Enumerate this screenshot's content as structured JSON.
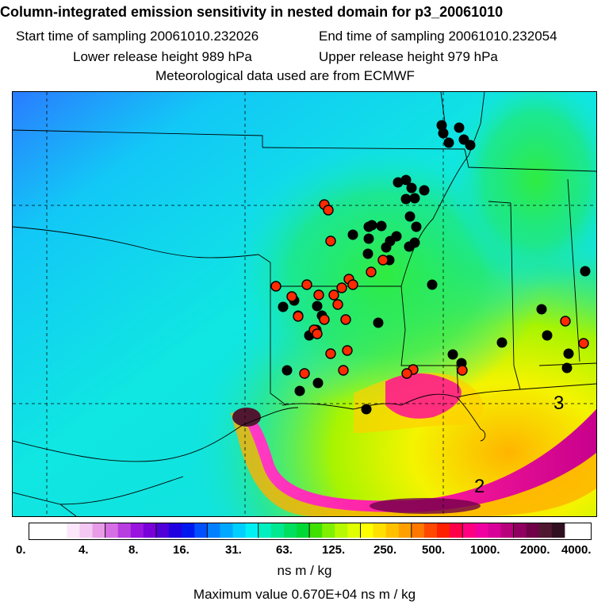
{
  "header": {
    "title": "Column-integrated emission sensitivity in nested domain for p3_20061010",
    "start": "Start time of sampling 20061010.232026",
    "end": "End time of sampling 20061010.232054",
    "lower": "Lower release height  989 hPa",
    "upper": "Upper release height  979 hPa",
    "met": "Meteorological data used are from ECMWF"
  },
  "map": {
    "labels": [
      "2",
      "3"
    ]
  },
  "colorbar": {
    "ticks": [
      "0.",
      "4.",
      "8.",
      "16.",
      "31.",
      "63.",
      "125.",
      "250.",
      "500.",
      "1000.",
      "2000.",
      "4000."
    ],
    "colors": [
      "#ffffff",
      "#fbe6fb",
      "#f3c8f3",
      "#e89ce8",
      "#d66fe6",
      "#b83ee0",
      "#9a14e0",
      "#7a00d8",
      "#5000d8",
      "#2000e0",
      "#0018f0",
      "#0050ff",
      "#0080ff",
      "#00a8ff",
      "#00cfff",
      "#00f0f4",
      "#00f0c0",
      "#00e890",
      "#00e060",
      "#00d836",
      "#40e000",
      "#80f000",
      "#b8f800",
      "#e0ff00",
      "#ffff00",
      "#ffe000",
      "#ffc000",
      "#ffa000",
      "#ff7800",
      "#ff4800",
      "#ff2000",
      "#ff0048",
      "#ff0080",
      "#f000a0",
      "#d80098",
      "#b8007c",
      "#900060",
      "#700048",
      "#501830",
      "#301020"
    ],
    "units": "ns m / kg"
  },
  "footer": {
    "max_value": "Maximum value  0.670E+04 ns m / kg"
  }
}
